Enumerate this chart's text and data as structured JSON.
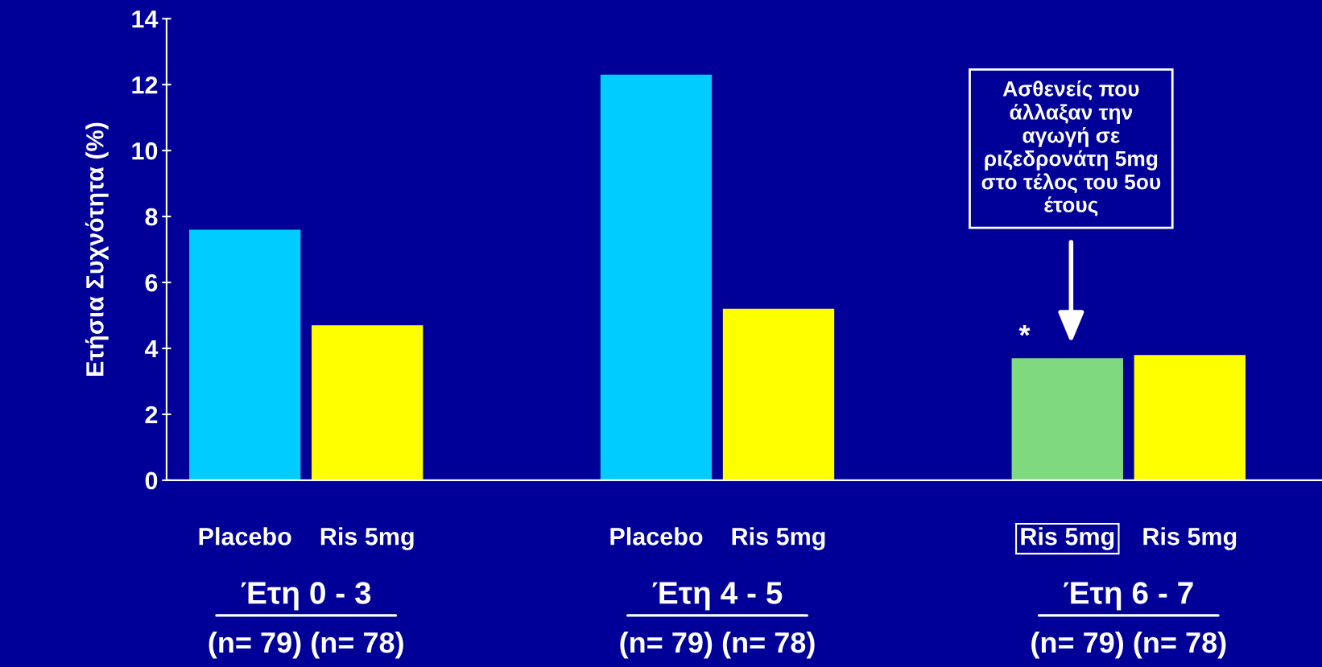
{
  "chart_data": {
    "type": "bar",
    "ylabel": "Ετήσια Συχνότητα (%)",
    "categories": [
      "Placebo",
      "Ris 5mg",
      "Placebo",
      "Ris 5mg",
      "Ris 5mg",
      "Ris 5mg"
    ],
    "values": [
      7.6,
      4.7,
      12.3,
      5.2,
      3.7,
      3.8
    ],
    "colors": [
      "#00ccff",
      "#ffff00",
      "#00ccff",
      "#ffff00",
      "#7fd97f",
      "#ffff00"
    ],
    "ylim": [
      0,
      14
    ],
    "yticks": [
      0,
      2,
      4,
      6,
      8,
      10,
      12,
      14
    ],
    "grid": false,
    "legend": false,
    "annotations": [
      "Ασθενείς που\nάλλαξαν την\nαγωγή σε\nριζεδρονάτη 5mg\nστο τέλος του 5ου\nέτους",
      "*",
      "Έτη 0 - 3",
      "(n= 79) (n= 78)",
      "Έτη 4 - 5",
      "(n= 79) (n= 78)",
      "Έτη 6 - 7",
      "(n= 79) (n= 78)"
    ]
  }
}
